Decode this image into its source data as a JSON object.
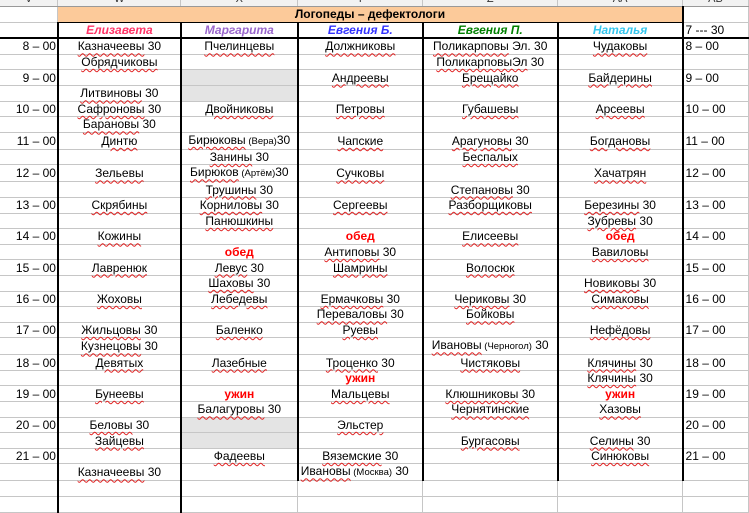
{
  "column_headers": [
    "V",
    "W",
    "X",
    "Y",
    "Z",
    "AA",
    "AB"
  ],
  "title": "Логопеды – дефектологи",
  "colors": {
    "title_bg": "#fcca9a",
    "meal": "#ff0000",
    "shaded_cell": "#e4e4e4"
  },
  "specialists": [
    {
      "name": "Елизавета",
      "color": "#ff3366"
    },
    {
      "name": "Маргарита",
      "color": "#9966cc"
    },
    {
      "name": "Евгения Б.",
      "color": "#3333ff"
    },
    {
      "name": "Евгения П.",
      "color": "#008000"
    },
    {
      "name": "Наталья",
      "color": "#33c6ee"
    }
  ],
  "ab_header": "7 --- 30",
  "rows": [
    {
      "time": "8 – 00",
      "cells": [
        {
          "m": "Казначеевы",
          "e": " 30"
        },
        {
          "m": "Пчелинцевы"
        },
        {
          "m": "Должниковы"
        },
        {
          "m": "Поликарповы",
          "e": " Эл. 30"
        },
        {
          "m": "Чудаковы"
        }
      ],
      "ab": "8 – 00"
    },
    {
      "time": "",
      "cells": [
        {
          "m": "Обрядчиковы"
        },
        {},
        {},
        {
          "m": "ПоликарповыЭл",
          "e": " 30"
        },
        {}
      ],
      "ab": ""
    },
    {
      "time": "9 – 00",
      "cells": [
        {},
        {
          "gray": true
        },
        {
          "m": "Андреевы"
        },
        {
          "m": "Брещайко"
        },
        {
          "m": "Байдерины"
        }
      ],
      "ab": "9 – 00"
    },
    {
      "time": "",
      "cells": [
        {
          "m": "Литвиновы",
          "e": " 30"
        },
        {
          "gray": true
        },
        {},
        {},
        {}
      ],
      "ab": ""
    },
    {
      "time": "10 – 00",
      "cells": [
        {
          "m": "Сафроновы",
          "e": " 30"
        },
        {
          "m": "Двойниковы"
        },
        {
          "m": "Петровы"
        },
        {
          "m": "Губашевы"
        },
        {
          "m": "Арсеевы"
        }
      ],
      "ab": "10 – 00"
    },
    {
      "time": "",
      "cells": [
        {
          "m": "Барановы",
          "e": " 30"
        },
        {},
        {},
        {},
        {}
      ],
      "ab": ""
    },
    {
      "time": "11 – 00",
      "cells": [
        {
          "m": "Динтю"
        },
        {
          "m": "Бирюковы",
          "n": " (Вера)",
          "e": "30"
        },
        {
          "m": "Чапские"
        },
        {
          "m": "Арагуновы",
          "e": " 30"
        },
        {
          "m": "Богдановы"
        }
      ],
      "ab": "11 – 00"
    },
    {
      "time": "",
      "cells": [
        {},
        {
          "m": "Занины",
          "e": " 30"
        },
        {},
        {
          "m": "Беспалых"
        },
        {}
      ],
      "ab": ""
    },
    {
      "time": "12 – 00",
      "cells": [
        {
          "m": "Зельевы"
        },
        {
          "m": "Бирюков",
          "n": " (Артём)",
          "e": "30"
        },
        {
          "m": "Сучковы"
        },
        {},
        {
          "m": "Хачатрян"
        }
      ],
      "ab": "12 – 00"
    },
    {
      "time": "",
      "cells": [
        {},
        {
          "m": "Трушины",
          "e": " 30"
        },
        {},
        {
          "m": "Степановы",
          "e": " 30"
        },
        {}
      ],
      "ab": ""
    },
    {
      "time": "13 – 00",
      "cells": [
        {
          "m": "Скрябины"
        },
        {
          "m": "Корниловы",
          "e": " 30"
        },
        {
          "m": "Сергеевы"
        },
        {
          "m": "Разборщиковы"
        },
        {
          "m": "Березины",
          "e": " 30"
        }
      ],
      "ab": "13 – 00"
    },
    {
      "time": "",
      "cells": [
        {},
        {
          "m": "Панюшкины"
        },
        {},
        {},
        {
          "m": "Зубревы",
          "e": " 30"
        }
      ],
      "ab": ""
    },
    {
      "time": "14 – 00",
      "cells": [
        {
          "m": "Кожины"
        },
        {},
        {
          "meal": "обед"
        },
        {
          "m": "Елисеевы"
        },
        {
          "meal": "обед"
        }
      ],
      "ab": "14 – 00"
    },
    {
      "time": "",
      "cells": [
        {},
        {
          "meal": "обед"
        },
        {
          "m": "Антиповы",
          "e": " 30"
        },
        {},
        {
          "m": "Вавиловы"
        }
      ],
      "ab": ""
    },
    {
      "time": "15 – 00",
      "cells": [
        {
          "m": "Лавренюк"
        },
        {
          "m": "Левус",
          "e": " 30"
        },
        {
          "m": "Шамрины"
        },
        {
          "m": "Волосюк"
        },
        {}
      ],
      "ab": "15 – 00"
    },
    {
      "time": "",
      "cells": [
        {},
        {
          "m": "Шаховы",
          "e": " 30"
        },
        {},
        {},
        {
          "m": "Новиковы",
          "e": " 30"
        }
      ],
      "ab": ""
    },
    {
      "time": "16 – 00",
      "cells": [
        {
          "m": "Жоховы"
        },
        {
          "m": "Лебедевы"
        },
        {
          "m": "Ермачковы",
          "e": " 30"
        },
        {
          "m": "Чериковы",
          "e": " 30"
        },
        {
          "m": "Симаковы"
        }
      ],
      "ab": "16 – 00"
    },
    {
      "time": "",
      "cells": [
        {},
        {},
        {
          "m": "Переваловы",
          "e": " 30"
        },
        {
          "m": "Бойковы"
        },
        {}
      ],
      "ab": ""
    },
    {
      "time": "17 – 00",
      "cells": [
        {
          "m": "Жильцовы",
          "e": " 30"
        },
        {
          "m": "Баленко"
        },
        {
          "m": "Руевы"
        },
        {},
        {
          "m": "Нефёдовы"
        }
      ],
      "ab": "17 – 00"
    },
    {
      "time": "",
      "cells": [
        {
          "m": "Кузнецовы",
          "e": " 30"
        },
        {},
        {},
        {
          "m": "Ивановы",
          "n": " (Черногол)",
          "e": " 30"
        },
        {}
      ],
      "ab": ""
    },
    {
      "time": "18 – 00",
      "cells": [
        {
          "m": "Девятых"
        },
        {
          "m": "Лазебные"
        },
        {
          "m": "Троценко",
          "e": " 30"
        },
        {
          "m": "Чистяковы"
        },
        {
          "m": "Клячины",
          "e": " 30"
        }
      ],
      "ab": "18 – 00"
    },
    {
      "time": "",
      "cells": [
        {},
        {},
        {
          "meal": "ужин"
        },
        {},
        {
          "m": "Клячины",
          "e": " 30"
        }
      ],
      "ab": ""
    },
    {
      "time": "19 – 00",
      "cells": [
        {
          "m": "Бунеевы"
        },
        {
          "meal": "ужин"
        },
        {
          "m": "Мальцевы"
        },
        {
          "m": "Клюшниковы",
          "e": " 30"
        },
        {
          "meal": "ужин"
        }
      ],
      "ab": "19 – 00"
    },
    {
      "time": "",
      "cells": [
        {},
        {
          "m": "Балагуровы",
          "e": " 30"
        },
        {},
        {
          "m": "Чернятинские"
        },
        {
          "m": "Хазовы"
        }
      ],
      "ab": ""
    },
    {
      "time": "20 – 00",
      "cells": [
        {
          "m": "Беловы",
          "e": " 30"
        },
        {
          "gray": true
        },
        {
          "m": "Эльстер"
        },
        {},
        {}
      ],
      "ab": "20 – 00"
    },
    {
      "time": "",
      "cells": [
        {
          "m": "Зайцевы"
        },
        {
          "gray": true
        },
        {},
        {
          "m": "Бургасовы"
        },
        {
          "m": "Селины",
          "e": " 30"
        }
      ],
      "ab": ""
    },
    {
      "time": "21 – 00",
      "cells": [
        {},
        {
          "m": "Фадеевы"
        },
        {
          "m": "Вяземские",
          "e": " 30"
        },
        {},
        {
          "m": "Синюковы"
        }
      ],
      "ab": "21 – 00"
    },
    {
      "time": "",
      "cells": [
        {
          "m": "Казначеевы",
          "e": " 30"
        },
        {},
        {
          "m": "Ивановы",
          "n": " (Москва)",
          "e": " 30"
        },
        {},
        {}
      ],
      "ab": ""
    }
  ]
}
